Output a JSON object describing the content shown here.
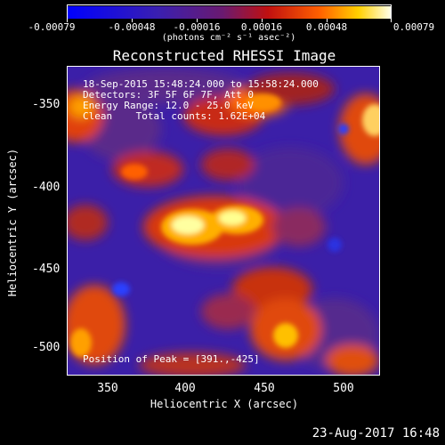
{
  "colorbar": {
    "labels": [
      "-0.00079",
      "-0.00048",
      "-0.00016",
      "0.00016",
      "0.00048",
      "0.00079"
    ],
    "units": "(photons cm⁻² s⁻¹ asec⁻²)"
  },
  "title": "Reconstructed RHESSI Image",
  "info": {
    "time_range": "18-Sep-2015 15:48:24.000 to 15:58:24.000",
    "detectors": "Detectors: 3F 5F 6F 7F, Att 0",
    "energy": "Energy Range: 12.0 - 25.0 keV",
    "clean": "Clean    Total counts: 1.62E+04",
    "peak": "Position of Peak = [391.,-425]"
  },
  "axes": {
    "xlabel": "Heliocentric X (arcsec)",
    "ylabel": "Heliocentric Y (arcsec)",
    "xticks": [
      "350",
      "400",
      "450",
      "500"
    ],
    "yticks": [
      "-350",
      "-400",
      "-450",
      "-500"
    ]
  },
  "footer": "23-Aug-2017 16:48",
  "image": {
    "x_range": [
      325,
      525
    ],
    "y_range": [
      -520,
      -320
    ],
    "peak_position": [
      391,
      -425
    ],
    "colormap": "blue-purple-red-yellow-white"
  }
}
